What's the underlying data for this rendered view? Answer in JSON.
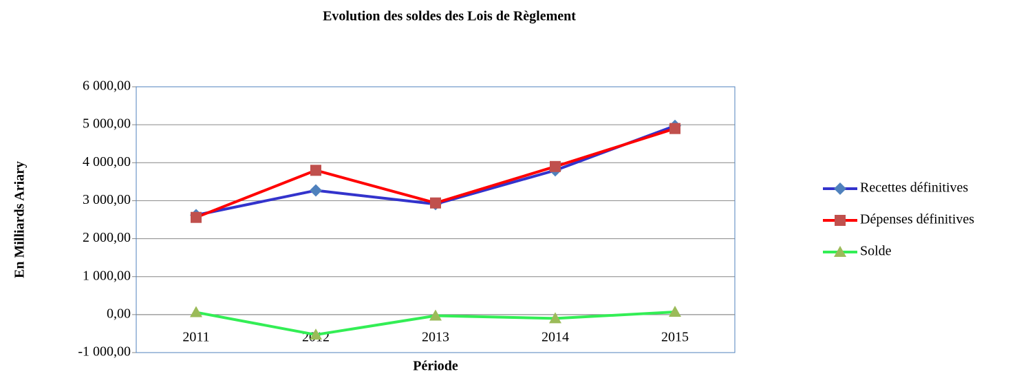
{
  "chart_data": {
    "type": "line",
    "title": "Evolution des soldes des Lois de Règlement",
    "x_label": "Période",
    "y_label": "En Milliards Ariary",
    "categories": [
      "2011",
      "2012",
      "2013",
      "2014",
      "2015"
    ],
    "series": [
      {
        "name": "Recettes définitives",
        "color": "#3333cc",
        "marker_color": "#4f81bd",
        "marker": "diamond",
        "values": [
          2620,
          3270,
          2910,
          3800,
          4970
        ]
      },
      {
        "name": "Dépenses définitives",
        "color": "#ff0000",
        "marker_color": "#c0504d",
        "marker": "square",
        "values": [
          2560,
          3800,
          2940,
          3900,
          4900
        ]
      },
      {
        "name": "Solde",
        "color": "#33ee55",
        "marker_color": "#9bbb59",
        "marker": "triangle",
        "values": [
          60,
          -530,
          -30,
          -100,
          70
        ]
      }
    ],
    "ylim": [
      -1000,
      6000
    ],
    "yticks": [
      {
        "value": -1000,
        "label": "-1 000,00"
      },
      {
        "value": 0,
        "label": "0,00"
      },
      {
        "value": 1000,
        "label": "1 000,00"
      },
      {
        "value": 2000,
        "label": "2 000,00"
      },
      {
        "value": 3000,
        "label": "3 000,00"
      },
      {
        "value": 4000,
        "label": "4 000,00"
      },
      {
        "value": 5000,
        "label": "5 000,00"
      },
      {
        "value": 6000,
        "label": "6 000,00"
      }
    ],
    "grid": true,
    "legend": "right"
  }
}
